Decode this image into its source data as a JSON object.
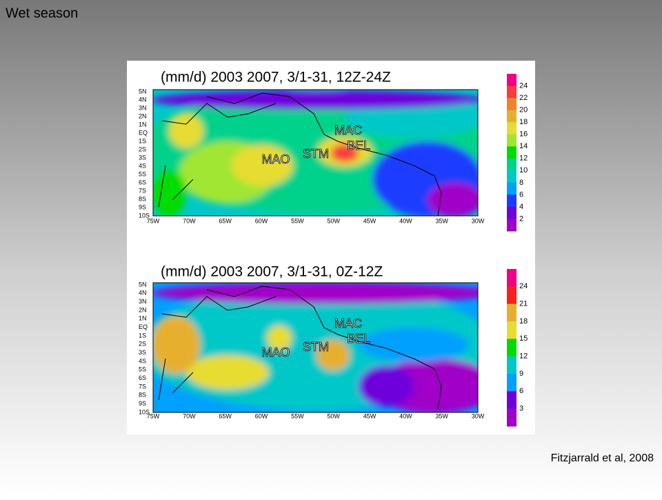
{
  "slide": {
    "title": "Wet  season",
    "citation": "Fitzjarrald et al, 2008"
  },
  "panels": [
    {
      "title": "(mm/d) 2003 2007, 3/1-31, 12Z-24Z",
      "lat_labels": [
        "5N",
        "4N",
        "3N",
        "2N",
        "1N",
        "EQ",
        "1S",
        "2S",
        "3S",
        "4S",
        "5S",
        "6S",
        "7S",
        "8S",
        "9S",
        "10S"
      ],
      "lon_labels": [
        "75W",
        "70W",
        "65W",
        "60W",
        "55W",
        "50W",
        "45W",
        "40W",
        "35W",
        "30W"
      ],
      "places": [
        "MAC",
        "BEL",
        "STM",
        "MAO"
      ],
      "colorbar": [
        24,
        22,
        20,
        18,
        16,
        14,
        12,
        10,
        8,
        6,
        4,
        2
      ]
    },
    {
      "title": "(mm/d) 2003 2007, 3/1-31, 0Z-12Z",
      "lat_labels": [
        "5N",
        "4N",
        "3N",
        "2N",
        "1N",
        "EQ",
        "1S",
        "2S",
        "3S",
        "4S",
        "5S",
        "6S",
        "7S",
        "8S",
        "9S",
        "10S"
      ],
      "lon_labels": [
        "75W",
        "70W",
        "65W",
        "60W",
        "55W",
        "50W",
        "45W",
        "40W",
        "35W",
        "30W"
      ],
      "places": [
        "MAC",
        "BEL",
        "STM",
        "MAO"
      ],
      "colorbar": [
        24,
        21,
        18,
        15,
        12,
        9,
        6,
        3
      ]
    }
  ]
}
